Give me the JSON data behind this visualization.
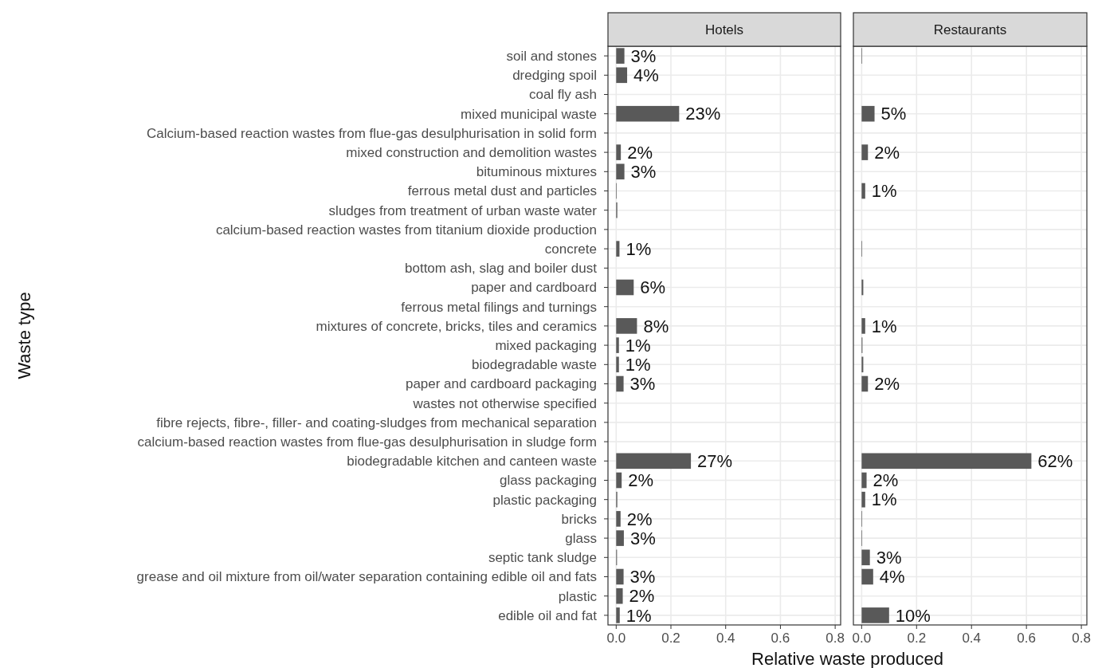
{
  "chart_data": [
    {
      "type": "bar",
      "orientation": "horizontal",
      "title": "Hotels",
      "xlabel": "Relative waste produced",
      "ylabel": "Waste type",
      "categories": [
        "soil and stones",
        "dredging spoil",
        "coal fly ash",
        "mixed municipal waste",
        "Calcium-based reaction wastes from flue-gas desulphurisation in solid form",
        "mixed construction and demolition wastes",
        "bituminous mixtures",
        "ferrous metal dust and particles",
        "sludges from treatment of urban waste water",
        "calcium-based reaction wastes from titanium dioxide production",
        "concrete",
        "bottom ash, slag and boiler dust ",
        "paper and cardboard",
        "ferrous metal filings and turnings",
        "mixtures of concrete, bricks, tiles and ceramics",
        "mixed packaging",
        "biodegradable waste",
        "paper and cardboard packaging",
        "wastes not otherwise specified",
        "fibre rejects, fibre-, filler- and coating-sludges from mechanical separation",
        "calcium-based reaction wastes from flue-gas desulphurisation in sludge form",
        "biodegradable kitchen and canteen waste",
        "glass packaging",
        "plastic packaging",
        "bricks",
        "glass",
        "septic tank sludge",
        "grease and oil mixture from oil/water separation containing edible oil and fats",
        "plastic",
        "edible oil and fat"
      ],
      "values": [
        0.03,
        0.04,
        null,
        0.23,
        null,
        0.017,
        0.03,
        0.002,
        0.004,
        null,
        0.012,
        null,
        0.064,
        null,
        0.076,
        0.01,
        0.01,
        0.027,
        null,
        null,
        null,
        0.273,
        0.02,
        0.004,
        0.016,
        0.028,
        0.003,
        0.027,
        0.024,
        0.013
      ],
      "value_labels": [
        "3%",
        "4%",
        null,
        "23%",
        null,
        "2%",
        "3%",
        null,
        null,
        null,
        "1%",
        null,
        "6%",
        null,
        "8%",
        "1%",
        "1%",
        "3%",
        null,
        null,
        null,
        "27%",
        "2%",
        null,
        "2%",
        "3%",
        null,
        "3%",
        "2%",
        "1%"
      ],
      "color": "#595959",
      "xlim": [
        -0.03,
        0.82
      ],
      "xticks": [
        {
          "value": 0,
          "label": "0.0"
        },
        0.2,
        0.4,
        0.6,
        0.8
      ],
      "grid": true
    },
    {
      "type": "bar",
      "orientation": "horizontal",
      "title": "Restaurants",
      "categories": [
        "soil and stones",
        "dredging spoil",
        "coal fly ash",
        "mixed municipal waste",
        "Calcium-based reaction wastes from flue-gas desulphurisation in solid form",
        "mixed construction and demolition wastes",
        "bituminous mixtures",
        "ferrous metal dust and particles",
        "sludges from treatment of urban waste water",
        "calcium-based reaction wastes from titanium dioxide production",
        "concrete",
        "bottom ash, slag and boiler dust ",
        "paper and cardboard",
        "ferrous metal filings and turnings",
        "mixtures of concrete, bricks, tiles and ceramics",
        "mixed packaging",
        "biodegradable waste",
        "paper and cardboard packaging",
        "wastes not otherwise specified",
        "fibre rejects, fibre-, filler- and coating-sludges from mechanical separation",
        "calcium-based reaction wastes from flue-gas desulphurisation in sludge form",
        "biodegradable kitchen and canteen waste",
        "glass packaging",
        "plastic packaging",
        "bricks",
        "glass",
        "septic tank sludge",
        "grease and oil mixture from oil/water separation containing edible oil and fats",
        "plastic",
        "edible oil and fat"
      ],
      "values": [
        0.002,
        null,
        null,
        0.047,
        null,
        0.023,
        null,
        0.013,
        null,
        null,
        0.002,
        null,
        0.006,
        null,
        0.013,
        0.003,
        0.006,
        0.023,
        null,
        null,
        null,
        0.618,
        0.018,
        0.013,
        0.002,
        0.002,
        0.03,
        0.042,
        null,
        0.1
      ],
      "value_labels": [
        null,
        null,
        null,
        "5%",
        null,
        "2%",
        null,
        "1%",
        null,
        null,
        null,
        null,
        null,
        null,
        "1%",
        null,
        null,
        "2%",
        null,
        null,
        null,
        "62%",
        "2%",
        "1%",
        null,
        null,
        "3%",
        "4%",
        null,
        "10%"
      ],
      "color": "#595959",
      "xlim": [
        -0.03,
        0.82
      ],
      "xticks": [
        {
          "value": 0,
          "label": "0.0"
        },
        0.2,
        0.4,
        0.6,
        0.8
      ],
      "grid": true,
      "tick_labels": "x"
    }
  ]
}
